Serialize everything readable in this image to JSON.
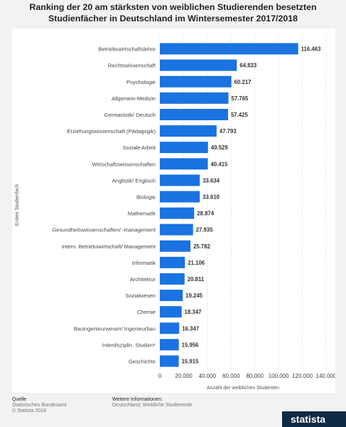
{
  "chart_data": {
    "type": "bar",
    "orientation": "horizontal",
    "title": "Ranking der 20 am stärksten von weiblichen Studierenden besetzten Studienfächer in Deutschland im Wintersemester 2017/2018",
    "title_lines": [
      "Ranking der 20 am stärksten von weiblichen Studierenden besetzten",
      "Studienfächer in Deutschland im Wintersemester 2017/2018"
    ],
    "ylabel": "Erstes Studienfach",
    "xlabel": "Anzahl der weiblichen Studenten",
    "xlim": [
      0,
      140000
    ],
    "ticks": [
      {
        "value": 0,
        "label": "0"
      },
      {
        "value": 20000,
        "label": "20.000"
      },
      {
        "value": 40000,
        "label": "40.000"
      },
      {
        "value": 60000,
        "label": "60.000"
      },
      {
        "value": 80000,
        "label": "80.000"
      },
      {
        "value": 100000,
        "label": "100.000"
      },
      {
        "value": 120000,
        "label": "120.000"
      },
      {
        "value": 140000,
        "label": "140.000"
      }
    ],
    "grid": true,
    "bar_color": "#1a73e0",
    "categories": [
      "Betriebswirtschaftslehre",
      "Rechtswissenschaft",
      "Psychologie",
      "Allgemein-Medizin",
      "Germanistik/ Deutsch",
      "Erziehungswissenschaft (Pädagogik)",
      "Soziale Arbeit",
      "Wirtschaftswissenschaften",
      "Anglistik/ Englisch",
      "Biologie",
      "Mathematik",
      "Gesundheitswissenschaften/ -management",
      "Intern. Betriebswirtschaft/ Management",
      "Informatik",
      "Architektur",
      "Sozialwesen",
      "Chemie",
      "Bauingenieurwesen/ Ingenieurbau",
      "Interdisziplin. Studien*",
      "Geschichte"
    ],
    "values": [
      116463,
      64833,
      60217,
      57765,
      57425,
      47793,
      40529,
      40415,
      33634,
      33610,
      28874,
      27935,
      25782,
      21106,
      20811,
      19245,
      18347,
      16347,
      15956,
      15915
    ],
    "value_labels": [
      "116.463",
      "64.833",
      "60.217",
      "57.765",
      "57.425",
      "47.793",
      "40.529",
      "40.415",
      "33.634",
      "33.610",
      "28.874",
      "27.935",
      "25.782",
      "21.106",
      "20.811",
      "19.245",
      "18.347",
      "16.347",
      "15.956",
      "15.915"
    ]
  },
  "footer": {
    "source_heading": "Quelle",
    "source_lines": [
      "Statistisches Bundesamt",
      "© Statista 2018"
    ],
    "info_heading": "Weitere Informationen:",
    "info_text": "Deutschland; Weibliche Studierende",
    "brand": "statista"
  }
}
